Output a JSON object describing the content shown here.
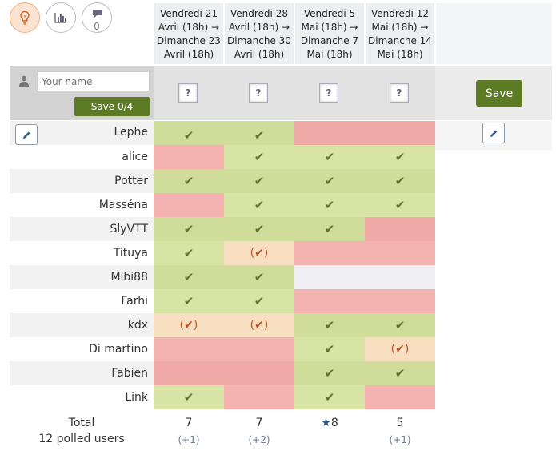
{
  "toolbar": {
    "buttons": [
      {
        "name": "bulb-view-button",
        "icon": "bulb-icon",
        "active": true
      },
      {
        "name": "chart-view-button",
        "icon": "bar-chart-icon",
        "active": false
      },
      {
        "name": "comments-button",
        "icon": "comment-icon",
        "count": "0",
        "active": false
      }
    ]
  },
  "dates": [
    {
      "line1": "Vendredi 21",
      "line2": "Avril (18h) →",
      "line3": "Dimanche 23",
      "line4": "Avril (18h)"
    },
    {
      "line1": "Vendredi 28",
      "line2": "Avril (18h) →",
      "line3": "Dimanche 30",
      "line4": "Avril (18h)"
    },
    {
      "line1": "Vendredi 5",
      "line2": "Mai (18h) →",
      "line3": "Dimanche 7",
      "line4": "Mai (18h)"
    },
    {
      "line1": "Vendredi 12",
      "line2": "Mai (18h) →",
      "line3": "Dimanche 14",
      "line4": "Mai (18h)"
    }
  ],
  "new_vote": {
    "name_placeholder": "Your name",
    "save_small_label": "Save 0/4",
    "choice_placeholder": "?",
    "save_label": "Save"
  },
  "symbols": {
    "yes": "✔",
    "maybe_open": "(",
    "maybe_close": ")"
  },
  "colors": {
    "yes": "#d8e4a6",
    "no": "#f4b3b0",
    "maybe": "#f9dfc1",
    "save_button": "#5d7a25",
    "accent": "#2f5a86"
  },
  "participants": [
    {
      "name": "Lephe",
      "votes": [
        "yes",
        "yes",
        "no",
        "no"
      ],
      "editable": true
    },
    {
      "name": "alice",
      "votes": [
        "no",
        "yes",
        "yes",
        "yes"
      ]
    },
    {
      "name": "Potter",
      "votes": [
        "yes",
        "yes",
        "yes",
        "yes"
      ]
    },
    {
      "name": "Masséna",
      "votes": [
        "no",
        "yes",
        "yes",
        "yes"
      ]
    },
    {
      "name": "SlyVTT",
      "votes": [
        "yes",
        "yes",
        "yes",
        "no"
      ]
    },
    {
      "name": "Tituya",
      "votes": [
        "yes",
        "maybe",
        "no",
        "no"
      ]
    },
    {
      "name": "Mibi88",
      "votes": [
        "yes",
        "yes",
        "empty",
        "empty"
      ]
    },
    {
      "name": "Farhi",
      "votes": [
        "yes",
        "yes",
        "no",
        "no"
      ]
    },
    {
      "name": "kdx",
      "votes": [
        "maybe",
        "maybe",
        "yes",
        "yes"
      ]
    },
    {
      "name": "Di martino",
      "votes": [
        "no",
        "no",
        "yes",
        "maybe"
      ]
    },
    {
      "name": "Fabien",
      "votes": [
        "no",
        "no",
        "yes",
        "yes"
      ]
    },
    {
      "name": "Link",
      "votes": [
        "yes",
        "no",
        "yes",
        "no"
      ]
    }
  ],
  "totals": {
    "label": "Total",
    "polled_label": "12 polled users",
    "values": [
      "7",
      "7",
      "8",
      "5"
    ],
    "best_index": 2,
    "star": "★",
    "maybe_counts": [
      "(+1)",
      "(+2)",
      "",
      "(+1)"
    ]
  }
}
